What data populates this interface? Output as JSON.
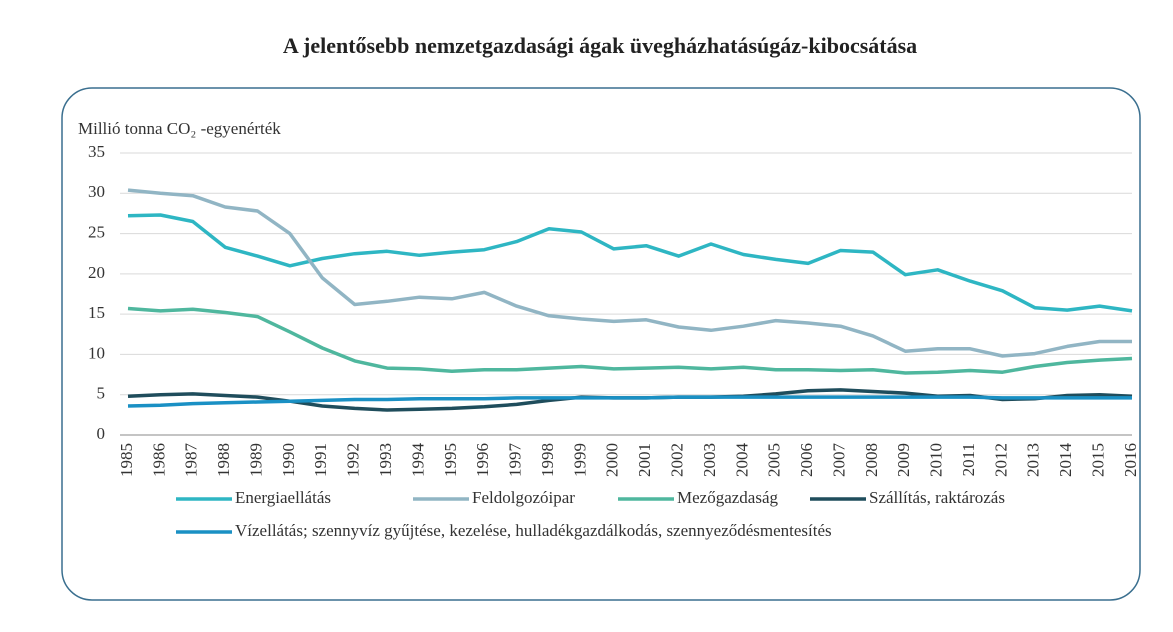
{
  "chart_data": {
    "type": "line",
    "title": "A jelentősebb nemzetgazdasági ágak üvegházhatásúgáz-kibocsátása",
    "y_label": "Millió tonna CO₂ -egyenérték",
    "categories": [
      "1985",
      "1986",
      "1987",
      "1988",
      "1989",
      "1990",
      "1991",
      "1992",
      "1993",
      "1994",
      "1995",
      "1996",
      "1997",
      "1998",
      "1999",
      "2000",
      "2001",
      "2002",
      "2003",
      "2004",
      "2005",
      "2006",
      "2007",
      "2008",
      "2009",
      "2010",
      "2011",
      "2012",
      "2013",
      "2014",
      "2015",
      "2016"
    ],
    "ylim": [
      0,
      35
    ],
    "yticks": [
      0,
      5,
      10,
      15,
      20,
      25,
      30,
      35
    ],
    "grid": true,
    "series": [
      {
        "name": "Energiaellátás",
        "color": "#2eb6c3",
        "values": [
          27.2,
          27.3,
          26.5,
          23.3,
          22.2,
          21.0,
          21.9,
          22.5,
          22.8,
          22.3,
          22.7,
          23.0,
          24.0,
          25.6,
          25.2,
          23.1,
          23.5,
          22.2,
          23.7,
          22.4,
          21.8,
          21.3,
          22.9,
          22.7,
          19.9,
          20.5,
          19.1,
          17.9,
          15.8,
          15.5,
          16.0,
          15.4
        ]
      },
      {
        "name": "Feldolgozóipar",
        "color": "#91b5c4",
        "values": [
          30.4,
          30.0,
          29.7,
          28.3,
          27.8,
          25.0,
          19.5,
          16.2,
          16.6,
          17.1,
          16.9,
          17.7,
          16.0,
          14.8,
          14.4,
          14.1,
          14.3,
          13.4,
          13.0,
          13.5,
          14.2,
          13.9,
          13.5,
          12.3,
          10.4,
          10.7,
          10.7,
          9.8,
          10.1,
          11.0,
          11.6,
          11.6
        ]
      },
      {
        "name": "Mezőgazdaság",
        "color": "#4fb79e",
        "values": [
          15.7,
          15.4,
          15.6,
          15.2,
          14.7,
          12.8,
          10.8,
          9.2,
          8.3,
          8.2,
          7.9,
          8.1,
          8.1,
          8.3,
          8.5,
          8.2,
          8.3,
          8.4,
          8.2,
          8.4,
          8.1,
          8.1,
          8.0,
          8.1,
          7.7,
          7.8,
          8.0,
          7.8,
          8.5,
          9.0,
          9.3,
          9.5
        ]
      },
      {
        "name": "Szállítás, raktározás",
        "color": "#1f4d5c",
        "values": [
          4.8,
          5.0,
          5.1,
          4.9,
          4.7,
          4.2,
          3.6,
          3.3,
          3.1,
          3.2,
          3.3,
          3.5,
          3.8,
          4.3,
          4.7,
          4.6,
          4.6,
          4.7,
          4.7,
          4.8,
          5.1,
          5.5,
          5.6,
          5.4,
          5.2,
          4.8,
          4.9,
          4.4,
          4.5,
          4.9,
          5.0,
          4.8
        ]
      },
      {
        "name": "Vízellátás; szennyvíz gyűjtése, kezelése, hulladékgazdálkodás, szennyeződésmentesítés",
        "color": "#1a90c4",
        "values": [
          3.6,
          3.7,
          3.9,
          4.0,
          4.1,
          4.2,
          4.3,
          4.4,
          4.4,
          4.5,
          4.5,
          4.5,
          4.6,
          4.6,
          4.6,
          4.6,
          4.6,
          4.7,
          4.7,
          4.7,
          4.7,
          4.7,
          4.7,
          4.7,
          4.7,
          4.7,
          4.7,
          4.6,
          4.6,
          4.6,
          4.6,
          4.6
        ]
      }
    ]
  }
}
